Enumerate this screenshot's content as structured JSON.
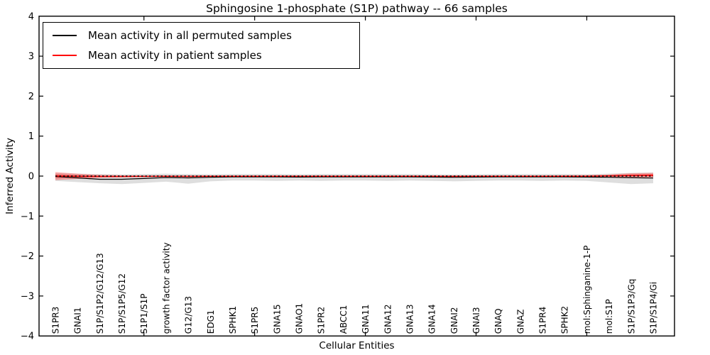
{
  "chart_data": {
    "type": "line",
    "title": "Sphingosine 1-phosphate (S1P) pathway -- 66 samples",
    "xlabel": "Cellular Entities",
    "ylabel": "Inferred Activity",
    "ylim": [
      -4,
      4
    ],
    "yticks": [
      4,
      3,
      2,
      1,
      0,
      -1,
      -2,
      -3,
      -4
    ],
    "ytick_labels": [
      "4",
      "3",
      "2",
      "1",
      "0",
      "−1",
      "−2",
      "−3",
      "−4"
    ],
    "grid": false,
    "legend_position": "upper left",
    "axis_tick_indices": [
      4,
      9,
      14,
      19,
      24
    ],
    "categories": [
      "S1PR3",
      "GNAI1",
      "S1P/S1P2/G12/G13",
      "S1P/S1P5/G12",
      "S1P1/S1P",
      "growth factor activity",
      "G12/G13",
      "EDG1",
      "SPHK1",
      "S1PR5",
      "GNA15",
      "GNAO1",
      "S1PR2",
      "ABCC1",
      "GNA11",
      "GNA12",
      "GNA13",
      "GNA14",
      "GNAI2",
      "GNAI3",
      "GNAQ",
      "GNAZ",
      "S1PR4",
      "SPHK2",
      "mol:Sphinganine-1-P",
      "mol:S1P",
      "S1P/S1P3/Gq",
      "S1P/S1P4/Gi"
    ],
    "series": [
      {
        "name": "Mean activity in all permuted samples",
        "color": "#000000",
        "values": [
          -0.01,
          -0.045,
          -0.08,
          -0.08,
          -0.06,
          -0.035,
          -0.045,
          -0.03,
          -0.02,
          -0.02,
          -0.02,
          -0.025,
          -0.02,
          -0.02,
          -0.02,
          -0.02,
          -0.02,
          -0.025,
          -0.03,
          -0.025,
          -0.02,
          -0.02,
          -0.02,
          -0.02,
          -0.025,
          -0.03,
          -0.04,
          -0.05
        ]
      },
      {
        "name": "Mean activity in patient samples",
        "color": "#ff0000",
        "values": [
          0.0,
          -0.005,
          -0.01,
          -0.01,
          -0.008,
          -0.005,
          -0.008,
          -0.005,
          -0.005,
          -0.005,
          -0.005,
          -0.005,
          -0.005,
          -0.005,
          -0.005,
          -0.005,
          -0.005,
          -0.005,
          -0.008,
          -0.005,
          -0.005,
          -0.005,
          -0.005,
          -0.005,
          -0.005,
          0.005,
          0.015,
          0.02
        ]
      }
    ],
    "bands": [
      {
        "name": "permuted-samples-range",
        "color": "#000000",
        "opacity": 0.13,
        "upper": [
          0.07,
          0.06,
          0.05,
          0.04,
          0.05,
          0.06,
          0.05,
          0.045,
          0.05,
          0.05,
          0.05,
          0.045,
          0.05,
          0.05,
          0.05,
          0.05,
          0.05,
          0.045,
          0.04,
          0.045,
          0.05,
          0.05,
          0.05,
          0.05,
          0.045,
          0.06,
          0.08,
          0.09
        ],
        "lower": [
          -0.12,
          -0.15,
          -0.18,
          -0.2,
          -0.17,
          -0.14,
          -0.19,
          -0.13,
          -0.11,
          -0.11,
          -0.12,
          -0.11,
          -0.12,
          -0.11,
          -0.11,
          -0.12,
          -0.11,
          -0.12,
          -0.13,
          -0.12,
          -0.11,
          -0.11,
          -0.12,
          -0.11,
          -0.12,
          -0.16,
          -0.2,
          -0.18
        ]
      },
      {
        "name": "patient-samples-range",
        "color": "#ff0000",
        "opacity": 0.3,
        "upper": [
          0.1,
          0.06,
          0.03,
          0.02,
          0.015,
          0.015,
          0.015,
          0.015,
          0.015,
          0.015,
          0.015,
          0.015,
          0.015,
          0.015,
          0.015,
          0.015,
          0.015,
          0.015,
          0.015,
          0.015,
          0.015,
          0.015,
          0.015,
          0.02,
          0.025,
          0.04,
          0.07,
          0.08
        ],
        "lower": [
          -0.1,
          -0.07,
          -0.04,
          -0.03,
          -0.025,
          -0.02,
          -0.025,
          -0.02,
          -0.02,
          -0.02,
          -0.02,
          -0.02,
          -0.02,
          -0.02,
          -0.02,
          -0.02,
          -0.02,
          -0.02,
          -0.025,
          -0.02,
          -0.02,
          -0.02,
          -0.02,
          -0.02,
          -0.02,
          -0.025,
          -0.03,
          -0.035
        ]
      }
    ],
    "reference_line": {
      "value": 0,
      "style": "dashed",
      "color": "#000000"
    }
  }
}
